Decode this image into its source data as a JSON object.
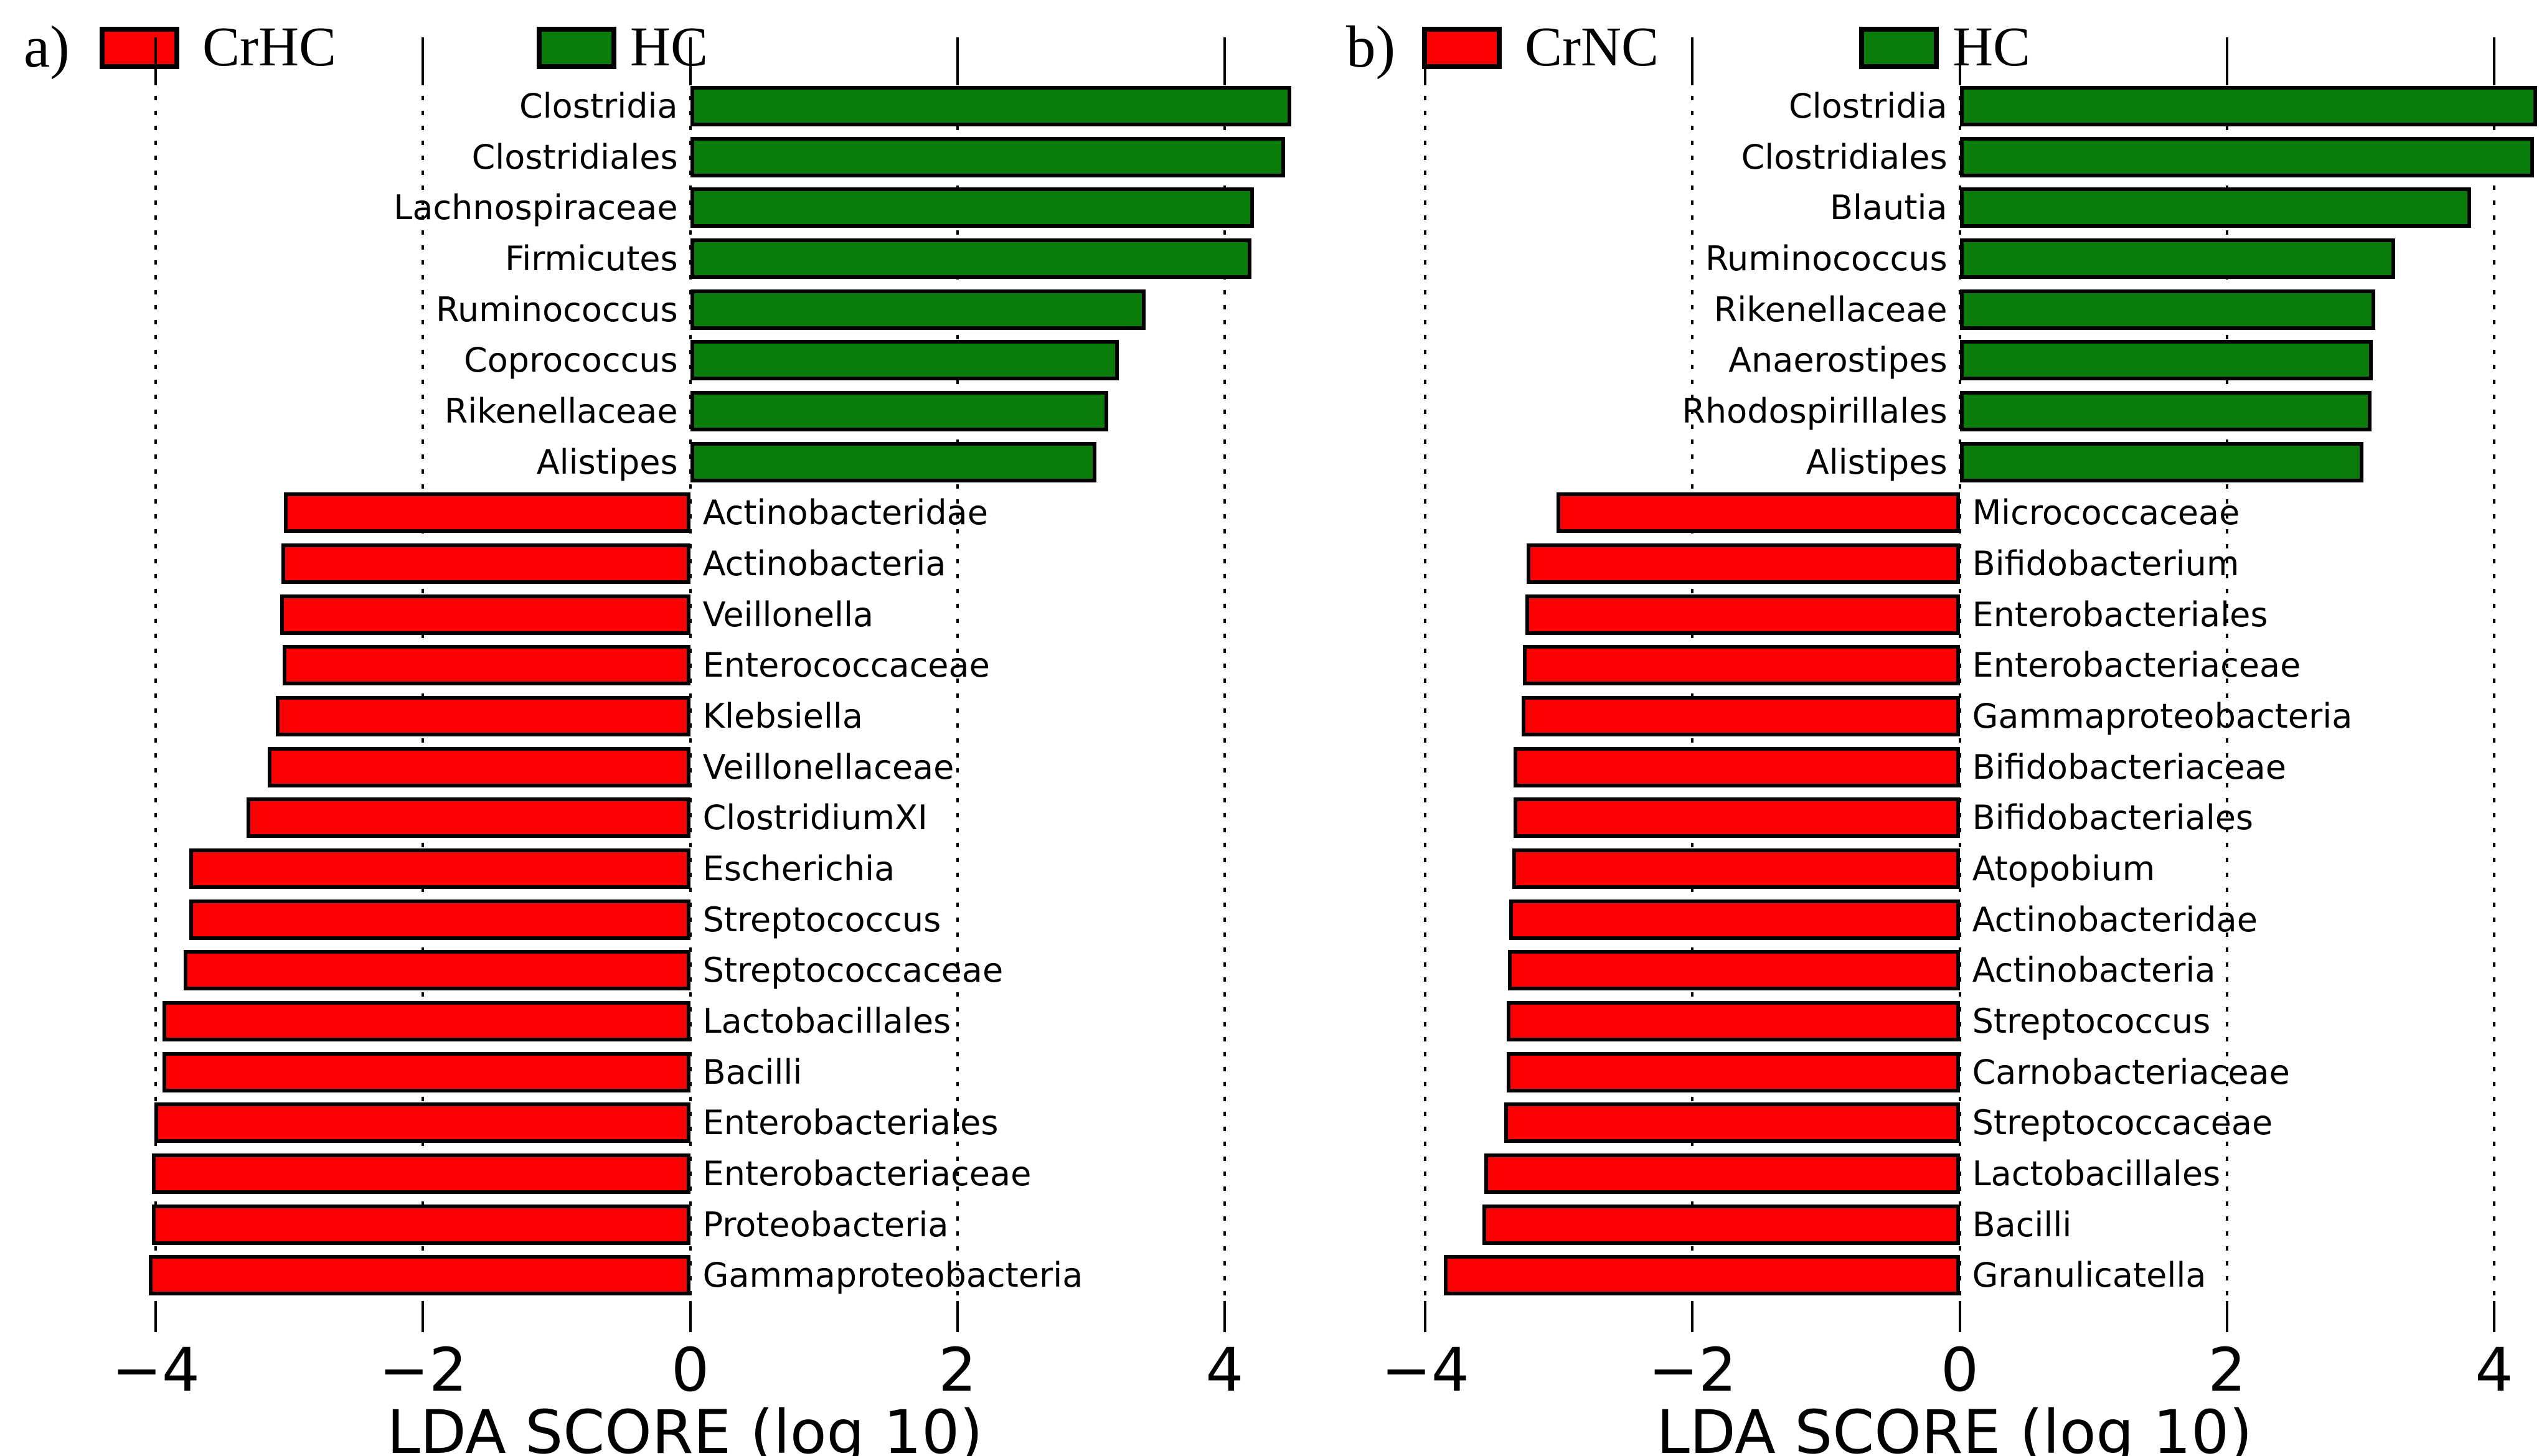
{
  "chart_data": [
    {
      "panel_label": "a)",
      "type": "bar",
      "orientation": "horizontal-diverging",
      "xlabel": "LDA SCORE (log 10)",
      "x_ticks": [
        -4,
        -2,
        0,
        2,
        4
      ],
      "x_tick_labels": [
        "−4",
        "−2",
        "0",
        "2",
        "4"
      ],
      "xlim": [
        -4.7,
        4.62
      ],
      "grid": "dotted-vertical-black",
      "bar_outline_color": "#000000",
      "legend": [
        {
          "label": "CrHC",
          "group": "CrHC",
          "color": "#fb0000"
        },
        {
          "label": "HC",
          "group": "HC",
          "color": "#097c09"
        }
      ],
      "bars": [
        {
          "label": "Clostridia",
          "group": "HC",
          "value": 4.5
        },
        {
          "label": "Clostridiales",
          "group": "HC",
          "value": 4.45
        },
        {
          "label": "Lachnospiraceae",
          "group": "HC",
          "value": 4.22
        },
        {
          "label": "Firmicutes",
          "group": "HC",
          "value": 4.2
        },
        {
          "label": "Ruminococcus",
          "group": "HC",
          "value": 3.41
        },
        {
          "label": "Coprococcus",
          "group": "HC",
          "value": 3.21
        },
        {
          "label": "Rikenellaceae",
          "group": "HC",
          "value": 3.13
        },
        {
          "label": "Alistipes",
          "group": "HC",
          "value": 3.04
        },
        {
          "label": "Actinobacteridae",
          "group": "CrHC",
          "value": -3.04
        },
        {
          "label": "Actinobacteria",
          "group": "CrHC",
          "value": -3.06
        },
        {
          "label": "Veillonella",
          "group": "CrHC",
          "value": -3.07
        },
        {
          "label": "Enterococcaceae",
          "group": "CrHC",
          "value": -3.05
        },
        {
          "label": "Klebsiella",
          "group": "CrHC",
          "value": -3.1
        },
        {
          "label": "Veillonellaceae",
          "group": "CrHC",
          "value": -3.16
        },
        {
          "label": "ClostridiumXI",
          "group": "CrHC",
          "value": -3.32
        },
        {
          "label": "Escherichia",
          "group": "CrHC",
          "value": -3.75
        },
        {
          "label": "Streptococcus",
          "group": "CrHC",
          "value": -3.75
        },
        {
          "label": "Streptococcaceae",
          "group": "CrHC",
          "value": -3.79
        },
        {
          "label": "Lactobacillales",
          "group": "CrHC",
          "value": -3.95
        },
        {
          "label": "Bacilli",
          "group": "CrHC",
          "value": -3.95
        },
        {
          "label": "Enterobacteriales",
          "group": "CrHC",
          "value": -4.01
        },
        {
          "label": "Enterobacteriaceae",
          "group": "CrHC",
          "value": -4.03
        },
        {
          "label": "Proteobacteria",
          "group": "CrHC",
          "value": -4.03
        },
        {
          "label": "Gammaproteobacteria",
          "group": "CrHC",
          "value": -4.05
        }
      ]
    },
    {
      "panel_label": "b)",
      "type": "bar",
      "orientation": "horizontal-diverging",
      "xlabel": "LDA SCORE (log 10)",
      "x_ticks": [
        -4,
        -2,
        0,
        2,
        4
      ],
      "x_tick_labels": [
        "−4",
        "−2",
        "0",
        "2",
        "4"
      ],
      "xlim": [
        -4.7,
        4.62
      ],
      "grid": "dotted-vertical-black",
      "bar_outline_color": "#000000",
      "legend": [
        {
          "label": "CrNC",
          "group": "CrNC",
          "color": "#fb0000"
        },
        {
          "label": "HC",
          "group": "HC",
          "color": "#097c09"
        }
      ],
      "bars": [
        {
          "label": "Clostridia",
          "group": "HC",
          "value": 4.32
        },
        {
          "label": "Clostridiales",
          "group": "HC",
          "value": 4.3
        },
        {
          "label": "Blautia",
          "group": "HC",
          "value": 3.83
        },
        {
          "label": "Ruminococcus",
          "group": "HC",
          "value": 3.26
        },
        {
          "label": "Rikenellaceae",
          "group": "HC",
          "value": 3.11
        },
        {
          "label": "Anaerostipes",
          "group": "HC",
          "value": 3.09
        },
        {
          "label": "Rhodospirillales",
          "group": "HC",
          "value": 3.08
        },
        {
          "label": "Alistipes",
          "group": "HC",
          "value": 3.02
        },
        {
          "label": "Micrococcaceae",
          "group": "CrNC",
          "value": -3.02
        },
        {
          "label": "Bifidobacterium",
          "group": "CrNC",
          "value": -3.24
        },
        {
          "label": "Enterobacteriales",
          "group": "CrNC",
          "value": -3.25
        },
        {
          "label": "Enterobacteriaceae",
          "group": "CrNC",
          "value": -3.27
        },
        {
          "label": "Gammaproteobacteria",
          "group": "CrNC",
          "value": -3.28
        },
        {
          "label": "Bifidobacteriaceae",
          "group": "CrNC",
          "value": -3.34
        },
        {
          "label": "Bifidobacteriales",
          "group": "CrNC",
          "value": -3.34
        },
        {
          "label": "Atopobium",
          "group": "CrNC",
          "value": -3.35
        },
        {
          "label": "Actinobacteridae",
          "group": "CrNC",
          "value": -3.37
        },
        {
          "label": "Actinobacteria",
          "group": "CrNC",
          "value": -3.38
        },
        {
          "label": "Streptococcus",
          "group": "CrNC",
          "value": -3.39
        },
        {
          "label": "Carnobacteriaceae",
          "group": "CrNC",
          "value": -3.39
        },
        {
          "label": "Streptococcaceae",
          "group": "CrNC",
          "value": -3.41
        },
        {
          "label": "Lactobacillales",
          "group": "CrNC",
          "value": -3.56
        },
        {
          "label": "Bacilli",
          "group": "CrNC",
          "value": -3.57
        },
        {
          "label": "Granulicatella",
          "group": "CrNC",
          "value": -3.86
        }
      ]
    }
  ]
}
